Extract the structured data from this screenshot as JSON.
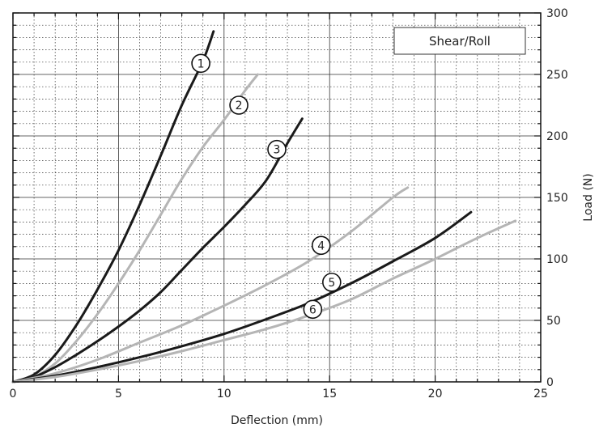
{
  "chart_data": {
    "type": "line",
    "title": "",
    "legend_box": "Shear/Roll",
    "legend_position": "top-right",
    "xlabel": "Deflection (mm)",
    "ylabel": "Load (N)",
    "y_axis_side": "right",
    "xlim": [
      0,
      25
    ],
    "ylim": [
      0,
      300
    ],
    "x_ticks": [
      0,
      5,
      10,
      15,
      20,
      25
    ],
    "y_ticks": [
      0,
      50,
      100,
      150,
      200,
      250,
      300
    ],
    "x_tick_labels": [
      "0",
      "5",
      "10",
      "15",
      "20",
      "25"
    ],
    "y_tick_labels": [
      "0",
      "50",
      "100",
      "150",
      "200",
      "250",
      "300"
    ],
    "grid": true,
    "series": [
      {
        "label": "1",
        "color": "#1a1a1a",
        "label_at": [
          8.9,
          259
        ],
        "points": [
          [
            0,
            0
          ],
          [
            1,
            6
          ],
          [
            2,
            22
          ],
          [
            3,
            46
          ],
          [
            4,
            75
          ],
          [
            5,
            107
          ],
          [
            6,
            144
          ],
          [
            7,
            184
          ],
          [
            8,
            225
          ],
          [
            9,
            261
          ],
          [
            9.5,
            285
          ]
        ]
      },
      {
        "label": "2",
        "color": "#b5b5b5",
        "label_at": [
          10.7,
          225
        ],
        "points": [
          [
            0,
            0
          ],
          [
            1,
            4
          ],
          [
            2,
            15
          ],
          [
            3,
            33
          ],
          [
            4,
            55
          ],
          [
            5,
            80
          ],
          [
            6,
            107
          ],
          [
            7,
            136
          ],
          [
            8,
            165
          ],
          [
            9,
            191
          ],
          [
            10,
            213
          ],
          [
            11,
            237
          ],
          [
            11.6,
            250
          ]
        ]
      },
      {
        "label": "3",
        "color": "#1a1a1a",
        "label_at": [
          12.5,
          189
        ],
        "points": [
          [
            0,
            0
          ],
          [
            1,
            4
          ],
          [
            2,
            12
          ],
          [
            3,
            22
          ],
          [
            4,
            33
          ],
          [
            5,
            45
          ],
          [
            6,
            58
          ],
          [
            7,
            73
          ],
          [
            8,
            91
          ],
          [
            9,
            109
          ],
          [
            10,
            126
          ],
          [
            11,
            144
          ],
          [
            12,
            164
          ],
          [
            13,
            194
          ],
          [
            13.7,
            214
          ]
        ]
      },
      {
        "label": "4",
        "color": "#b5b5b5",
        "label_at": [
          14.6,
          111
        ],
        "points": [
          [
            0,
            0
          ],
          [
            2,
            7
          ],
          [
            4,
            18
          ],
          [
            6,
            32
          ],
          [
            8,
            46
          ],
          [
            10,
            62
          ],
          [
            12,
            79
          ],
          [
            14,
            98
          ],
          [
            16,
            122
          ],
          [
            18,
            150
          ],
          [
            18.7,
            158
          ]
        ]
      },
      {
        "label": "5",
        "color": "#1a1a1a",
        "label_at": [
          15.1,
          81
        ],
        "points": [
          [
            0,
            0
          ],
          [
            2,
            5
          ],
          [
            4,
            12
          ],
          [
            6,
            20
          ],
          [
            8,
            29
          ],
          [
            10,
            39
          ],
          [
            12,
            51
          ],
          [
            14,
            64
          ],
          [
            16,
            80
          ],
          [
            18,
            98
          ],
          [
            20,
            117
          ],
          [
            21.7,
            138
          ]
        ]
      },
      {
        "label": "6",
        "color": "#b5b5b5",
        "label_at": [
          14.2,
          59
        ],
        "points": [
          [
            0,
            0
          ],
          [
            2,
            4
          ],
          [
            4,
            10
          ],
          [
            6,
            17
          ],
          [
            8,
            25
          ],
          [
            10,
            34
          ],
          [
            12,
            43
          ],
          [
            14,
            54
          ],
          [
            16,
            67
          ],
          [
            18,
            84
          ],
          [
            20,
            100
          ],
          [
            22,
            117
          ],
          [
            23.8,
            131
          ]
        ]
      }
    ]
  }
}
